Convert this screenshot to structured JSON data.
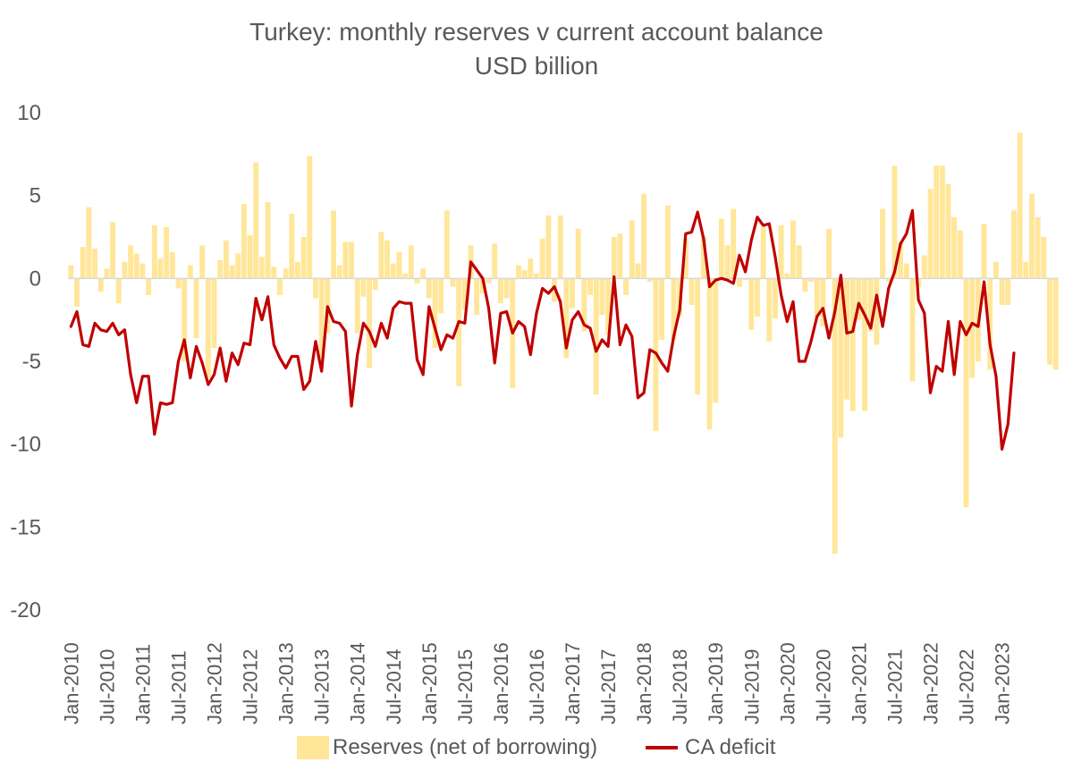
{
  "chart_data": {
    "type": "bar+line",
    "title": "Turkey: monthly reserves v current account balance",
    "subtitle": "USD billion",
    "ylim": [
      -20,
      10
    ],
    "yticks": [
      10,
      5,
      0,
      -5,
      -10,
      -15,
      -20
    ],
    "xtick_labels": [
      "Jan-2010",
      "Jul-2010",
      "Jan-2011",
      "Jul-2011",
      "Jan-2012",
      "Jul-2012",
      "Jan-2013",
      "Jul-2013",
      "Jan-2014",
      "Jul-2014",
      "Jan-2015",
      "Jul-2015",
      "Jan-2016",
      "Jul-2016",
      "Jan-2017",
      "Jul-2017",
      "Jan-2018",
      "Jul-2018",
      "Jan-2019",
      "Jul-2019",
      "Jan-2020",
      "Jul-2020",
      "Jan-2021",
      "Jul-2021",
      "Jan-2022",
      "Jul-2022",
      "Jan-2023"
    ],
    "start": "Jan-2010",
    "series": [
      {
        "name": "Reserves (net of borrowing)",
        "kind": "bar",
        "color": "#FFE699",
        "values": [
          0.8,
          -1.7,
          1.9,
          4.3,
          1.8,
          -0.8,
          0.6,
          3.4,
          -1.5,
          1.0,
          2.0,
          1.5,
          0.9,
          -1.0,
          3.2,
          1.2,
          3.1,
          1.6,
          -0.6,
          -5.0,
          0.8,
          -3.6,
          2.0,
          -6.0,
          -4.2,
          1.1,
          2.3,
          0.8,
          1.5,
          4.5,
          2.6,
          7.0,
          1.3,
          4.6,
          0.7,
          -1.0,
          0.6,
          3.9,
          1.0,
          2.5,
          7.4,
          -1.2,
          -4.8,
          -3.3,
          4.1,
          0.8,
          2.2,
          2.2,
          -3.3,
          -1.1,
          -5.4,
          -0.7,
          2.8,
          2.3,
          0.9,
          1.6,
          0.3,
          2.0,
          -0.3,
          0.6,
          -1.2,
          -4.2,
          -2.1,
          4.1,
          -0.5,
          -6.5,
          -1.9,
          2.0,
          -2.2,
          -0.9,
          -0.3,
          2.1,
          -1.5,
          -1.2,
          -6.6,
          0.8,
          0.5,
          1.2,
          0.3,
          2.4,
          3.8,
          -1.4,
          3.8,
          -4.8,
          -1.8,
          3.0,
          -3.2,
          -1.0,
          -7.0,
          -2.2,
          -3.4,
          2.5,
          2.7,
          -1.0,
          3.5,
          0.9,
          5.1,
          -0.2,
          -9.2,
          -3.7,
          4.4,
          -3.7,
          -2.3,
          2.4,
          -1.6,
          -7.0,
          2.5,
          -9.1,
          -7.5,
          3.6,
          2.0,
          4.2,
          -0.5,
          -0.1,
          -3.1,
          -2.3,
          3.1,
          -3.8,
          -2.4,
          3.2,
          0.3,
          3.5,
          2.0,
          -0.8,
          -0.2,
          -2.3,
          -2.9,
          3.0,
          -16.6,
          -9.6,
          -7.3,
          -8.0,
          -2.5,
          -8.0,
          -3.2,
          -4.0,
          4.2,
          -0.2,
          6.8,
          2.2,
          0.9,
          -6.2,
          -0.5,
          1.4,
          5.4,
          6.8,
          6.8,
          5.7,
          3.7,
          2.9,
          -13.8,
          -6.0,
          -5.0,
          3.3,
          -5.5,
          1.0,
          -1.6,
          -1.6,
          4.1,
          8.8,
          1.0,
          5.1,
          3.7,
          2.5,
          -5.2,
          -5.5
        ]
      },
      {
        "name": "CA deficit",
        "kind": "line",
        "color": "#C00000",
        "values": [
          -2.9,
          -2.0,
          -4.0,
          -4.1,
          -2.7,
          -3.1,
          -3.2,
          -2.7,
          -3.4,
          -3.1,
          -5.8,
          -7.5,
          -5.9,
          -5.9,
          -9.4,
          -7.5,
          -7.6,
          -7.5,
          -5.0,
          -3.7,
          -6.0,
          -4.1,
          -5.1,
          -6.4,
          -5.8,
          -4.2,
          -6.2,
          -4.5,
          -5.2,
          -3.9,
          -4.0,
          -1.2,
          -2.5,
          -1.1,
          -4.0,
          -4.8,
          -5.4,
          -4.7,
          -4.7,
          -6.7,
          -6.2,
          -3.8,
          -5.6,
          -1.7,
          -2.6,
          -2.7,
          -3.2,
          -7.7,
          -4.6,
          -2.7,
          -3.2,
          -4.1,
          -2.7,
          -3.6,
          -1.8,
          -1.4,
          -1.5,
          -1.5,
          -4.9,
          -5.8,
          -1.7,
          -3.0,
          -4.3,
          -3.4,
          -3.6,
          -2.6,
          -2.7,
          1.0,
          0.5,
          0.0,
          -1.8,
          -5.1,
          -2.1,
          -2.0,
          -3.3,
          -2.6,
          -2.9,
          -4.6,
          -2.1,
          -0.6,
          -0.9,
          -0.5,
          -1.4,
          -4.2,
          -2.5,
          -2.0,
          -2.8,
          -3.0,
          -4.4,
          -3.7,
          -4.1,
          0.1,
          -4.0,
          -2.8,
          -3.5,
          -7.2,
          -6.9,
          -4.3,
          -4.5,
          -5.1,
          -5.6,
          -3.5,
          -1.9,
          2.7,
          2.8,
          4.0,
          2.4,
          -0.5,
          -0.1,
          0.0,
          -0.1,
          -0.3,
          1.4,
          0.4,
          2.3,
          3.7,
          3.2,
          3.3,
          1.3,
          -1.0,
          -2.6,
          -1.4,
          -5.0,
          -5.0,
          -3.8,
          -2.3,
          -1.8,
          -3.6,
          -2.0,
          0.2,
          -3.3,
          -3.2,
          -1.5,
          -2.2,
          -3.0,
          -1.0,
          -2.9,
          -0.6,
          0.4,
          2.1,
          2.7,
          4.1,
          -1.3,
          -2.1,
          -6.9,
          -5.3,
          -5.6,
          -2.6,
          -5.8,
          -2.6,
          -3.4,
          -2.7,
          -2.9,
          -0.2,
          -4.0,
          -5.9,
          -10.3,
          -8.8,
          -4.5
        ]
      }
    ],
    "legend": [
      "Reserves (net of borrowing)",
      "CA deficit"
    ]
  }
}
